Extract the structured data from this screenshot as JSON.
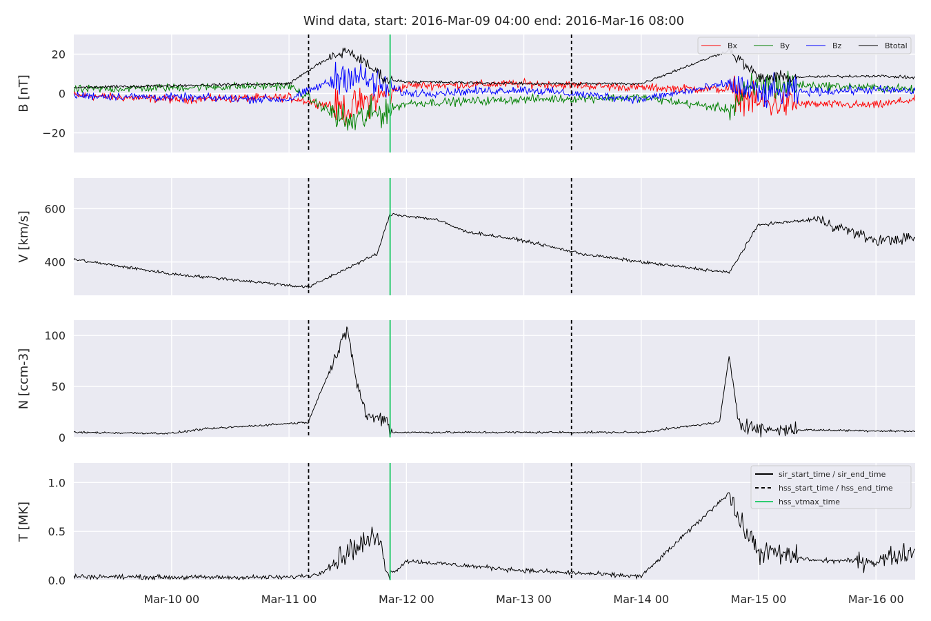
{
  "title": "Wind data, start: 2016-Mar-09 04:00  end: 2016-Mar-16 08:00",
  "chart_data": {
    "type": "line",
    "x_ticks": [
      "Mar-10 00",
      "Mar-11 00",
      "Mar-12 00",
      "Mar-13 00",
      "Mar-14 00",
      "Mar-15 00",
      "Mar-16 00"
    ],
    "x_range": [
      "2016-03-09 04:00",
      "2016-03-16 08:00"
    ],
    "grid": true,
    "events": [
      {
        "name": "sir_start_time / sir_end_time",
        "style": "solid",
        "color": "#000000"
      },
      {
        "name": "hss_start_time / hss_end_time",
        "style": "dashed",
        "color": "#000000",
        "times": [
          "2016-03-11 04:00",
          "2016-03-13 09:45"
        ]
      },
      {
        "name": "hss_vtmax_time",
        "style": "solid",
        "color": "#2ecc71",
        "times": [
          "2016-03-11 20:40"
        ]
      }
    ],
    "panels": [
      {
        "ylabel": "B [nT]",
        "ylim": [
          -30,
          30
        ],
        "yticks": [
          "20",
          "0",
          "−20"
        ],
        "ytick_values": [
          20,
          0,
          -20
        ],
        "legend": "top-right",
        "series": [
          {
            "name": "Bx",
            "color": "#ff0000",
            "x": [
              "2016-03-09 04:00",
              "2016-03-10 00:00",
              "2016-03-11 00:00",
              "2016-03-11 12:00",
              "2016-03-12 00:00",
              "2016-03-13 00:00",
              "2016-03-14 00:00",
              "2016-03-14 18:00",
              "2016-03-15 00:00",
              "2016-03-16 00:00",
              "2016-03-16 08:00"
            ],
            "values": [
              -1,
              -3,
              -2,
              -8,
              4,
              5,
              3,
              2,
              -5,
              -6,
              -3
            ]
          },
          {
            "name": "By",
            "color": "#008000",
            "x": [
              "2016-03-09 04:00",
              "2016-03-10 00:00",
              "2016-03-11 00:00",
              "2016-03-11 12:00",
              "2016-03-12 00:00",
              "2016-03-13 00:00",
              "2016-03-14 00:00",
              "2016-03-14 18:00",
              "2016-03-15 00:00",
              "2016-03-16 00:00",
              "2016-03-16 08:00"
            ],
            "values": [
              2,
              3,
              4,
              -15,
              -5,
              -3,
              -2,
              -8,
              5,
              3,
              2
            ]
          },
          {
            "name": "Bz",
            "color": "#0000ff",
            "x": [
              "2016-03-09 04:00",
              "2016-03-10 00:00",
              "2016-03-11 00:00",
              "2016-03-11 12:00",
              "2016-03-12 00:00",
              "2016-03-13 00:00",
              "2016-03-14 00:00",
              "2016-03-14 18:00",
              "2016-03-15 00:00",
              "2016-03-16 00:00",
              "2016-03-16 08:00"
            ],
            "values": [
              -1,
              -2,
              -3,
              10,
              0,
              2,
              -3,
              5,
              0,
              2,
              1
            ]
          },
          {
            "name": "Btotal",
            "color": "#000000",
            "x": [
              "2016-03-09 04:00",
              "2016-03-10 00:00",
              "2016-03-11 00:00",
              "2016-03-11 06:00",
              "2016-03-11 12:00",
              "2016-03-11 20:00",
              "2016-03-12 00:00",
              "2016-03-13 00:00",
              "2016-03-14 00:00",
              "2016-03-14 18:00",
              "2016-03-15 00:00",
              "2016-03-16 00:00",
              "2016-03-16 08:00"
            ],
            "values": [
              3,
              4,
              5,
              15,
              22,
              7,
              6,
              5,
              5,
              22,
              8,
              9,
              8
            ]
          }
        ]
      },
      {
        "ylabel": "V [km/s]",
        "ylim": [
          275,
          715
        ],
        "yticks": [
          "600",
          "400"
        ],
        "ytick_values": [
          600,
          400
        ],
        "series": [
          {
            "name": "",
            "color": "#000000",
            "x": [
              "2016-03-09 04:00",
              "2016-03-10 00:00",
              "2016-03-10 12:00",
              "2016-03-11 04:00",
              "2016-03-11 10:00",
              "2016-03-11 18:00",
              "2016-03-11 20:40",
              "2016-03-12 06:00",
              "2016-03-12 12:00",
              "2016-03-13 00:00",
              "2016-03-13 12:00",
              "2016-03-14 00:00",
              "2016-03-14 18:00",
              "2016-03-15 00:00",
              "2016-03-15 12:00",
              "2016-03-16 00:00",
              "2016-03-16 08:00"
            ],
            "values": [
              410,
              355,
              335,
              305,
              360,
              430,
              580,
              560,
              515,
              480,
              430,
              400,
              360,
              540,
              560,
              480,
              490
            ]
          }
        ]
      },
      {
        "ylabel": "N [ccm-3]",
        "ylim": [
          0,
          115
        ],
        "yticks": [
          "100",
          "50",
          "0"
        ],
        "ytick_values": [
          100,
          50,
          0
        ],
        "series": [
          {
            "name": "",
            "color": "#000000",
            "x": [
              "2016-03-09 04:00",
              "2016-03-10 00:00",
              "2016-03-10 06:00",
              "2016-03-11 04:00",
              "2016-03-11 06:00",
              "2016-03-11 12:00",
              "2016-03-11 14:00",
              "2016-03-11 16:00",
              "2016-03-11 20:00",
              "2016-03-11 20:40",
              "2016-03-13 00:00",
              "2016-03-14 00:00",
              "2016-03-14 16:00",
              "2016-03-14 18:00",
              "2016-03-14 20:00",
              "2016-03-15 00:00",
              "2016-03-16 08:00"
            ],
            "values": [
              5,
              4,
              8,
              15,
              40,
              105,
              50,
              20,
              18,
              5,
              5,
              5,
              15,
              80,
              15,
              8,
              6
            ]
          }
        ]
      },
      {
        "ylabel": "T [MK]",
        "ylim": [
          0,
          1.2
        ],
        "yticks": [
          "1.0",
          "0.5",
          "0.0"
        ],
        "ytick_values": [
          1.0,
          0.5,
          0.0
        ],
        "legend": "top-right",
        "series": [
          {
            "name": "",
            "color": "#000000",
            "x": [
              "2016-03-09 04:00",
              "2016-03-10 00:00",
              "2016-03-11 00:00",
              "2016-03-11 06:00",
              "2016-03-11 12:00",
              "2016-03-11 18:00",
              "2016-03-11 20:40",
              "2016-03-12 00:00",
              "2016-03-13 00:00",
              "2016-03-14 00:00",
              "2016-03-14 18:00",
              "2016-03-14 20:00",
              "2016-03-15 00:00",
              "2016-03-15 12:00",
              "2016-03-16 00:00",
              "2016-03-16 08:00"
            ],
            "values": [
              0.04,
              0.03,
              0.03,
              0.06,
              0.3,
              0.45,
              0.05,
              0.2,
              0.1,
              0.04,
              0.9,
              0.6,
              0.3,
              0.2,
              0.2,
              0.3
            ]
          }
        ]
      }
    ]
  }
}
